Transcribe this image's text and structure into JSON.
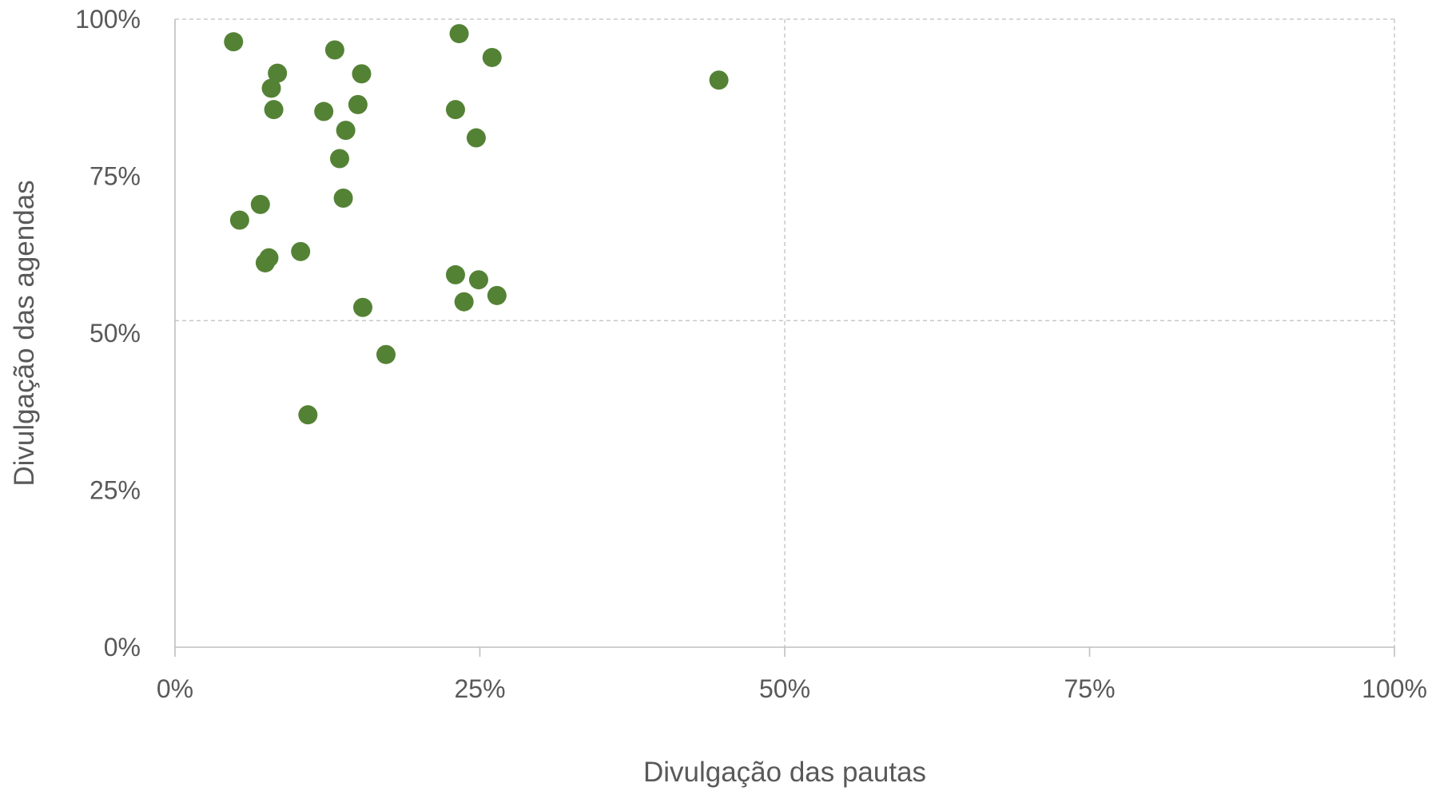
{
  "chart_data": {
    "type": "scatter",
    "title": "",
    "xlabel": "Divulgação das pautas",
    "ylabel": "Divulgação das agendas",
    "xlim": [
      0,
      100
    ],
    "ylim": [
      0,
      100
    ],
    "x_ticks": [
      0,
      25,
      50,
      75,
      100
    ],
    "y_ticks": [
      0,
      25,
      50,
      75,
      100
    ],
    "x_tick_labels": [
      "0%",
      "25%",
      "50%",
      "75%",
      "100%"
    ],
    "y_tick_labels": [
      "0%",
      "25%",
      "50%",
      "75%",
      "100%"
    ],
    "reference_lines": {
      "x": 50,
      "y": 52
    },
    "grid": false,
    "marker_color": "#548235",
    "series": [
      {
        "points": [
          {
            "x": 4.8,
            "y": 96.4
          },
          {
            "x": 23.3,
            "y": 97.7
          },
          {
            "x": 13.1,
            "y": 95.1
          },
          {
            "x": 26.0,
            "y": 93.9
          },
          {
            "x": 8.4,
            "y": 91.4
          },
          {
            "x": 15.3,
            "y": 91.3
          },
          {
            "x": 44.6,
            "y": 90.3
          },
          {
            "x": 7.9,
            "y": 89.0
          },
          {
            "x": 15.0,
            "y": 86.4
          },
          {
            "x": 8.1,
            "y": 85.6
          },
          {
            "x": 12.2,
            "y": 85.3
          },
          {
            "x": 23.0,
            "y": 85.6
          },
          {
            "x": 14.0,
            "y": 82.3
          },
          {
            "x": 24.7,
            "y": 81.1
          },
          {
            "x": 13.5,
            "y": 77.8
          },
          {
            "x": 13.8,
            "y": 71.5
          },
          {
            "x": 7.0,
            "y": 70.5
          },
          {
            "x": 5.3,
            "y": 68.0
          },
          {
            "x": 10.3,
            "y": 63.0
          },
          {
            "x": 7.7,
            "y": 62.0
          },
          {
            "x": 7.4,
            "y": 61.2
          },
          {
            "x": 23.0,
            "y": 59.3
          },
          {
            "x": 24.9,
            "y": 58.5
          },
          {
            "x": 26.4,
            "y": 56.0
          },
          {
            "x": 23.7,
            "y": 55.0
          },
          {
            "x": 15.4,
            "y": 54.1
          },
          {
            "x": 17.3,
            "y": 46.6
          },
          {
            "x": 10.9,
            "y": 37.0
          }
        ]
      }
    ]
  }
}
